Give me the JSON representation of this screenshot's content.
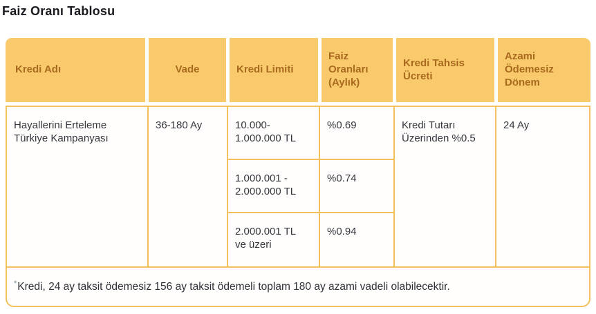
{
  "title": "Faiz Oranı Tablosu",
  "colors": {
    "header_bg": "#f9ca6b",
    "header_text": "#a9691e",
    "border": "#f3c05a",
    "title_text": "#191920",
    "body_text": "#35363e"
  },
  "table": {
    "columns": [
      {
        "label": "Kredi Adı"
      },
      {
        "label": "Vade"
      },
      {
        "label": "Kredi Limiti"
      },
      {
        "label": "Faiz\nOranları\n(Aylık)"
      },
      {
        "label": "Kredi Tahsis\nÜcreti"
      },
      {
        "label": "Azami\nÖdemesiz\nDönem"
      }
    ],
    "row": {
      "kredi_adi": "Hayallerini Erteleme\nTürkiye Kampanyası",
      "vade": "36-180 Ay",
      "tiers": [
        {
          "limit": "10.000-\n1.000.000 TL",
          "rate": "%0.69"
        },
        {
          "limit": "1.000.001 -\n2.000.000 TL",
          "rate": "%0.74"
        },
        {
          "limit": "2.000.001 TL\nve üzeri",
          "rate": "%0.94"
        }
      ],
      "tahsis": "Kredi Tutarı\nÜzerinden %0.5",
      "azami": "24 Ay"
    },
    "footnote_marker": "*",
    "footnote": "Kredi, 24 ay taksit ödemesiz 156 ay taksit ödemeli toplam 180 ay azami vadeli olabilecektir."
  }
}
